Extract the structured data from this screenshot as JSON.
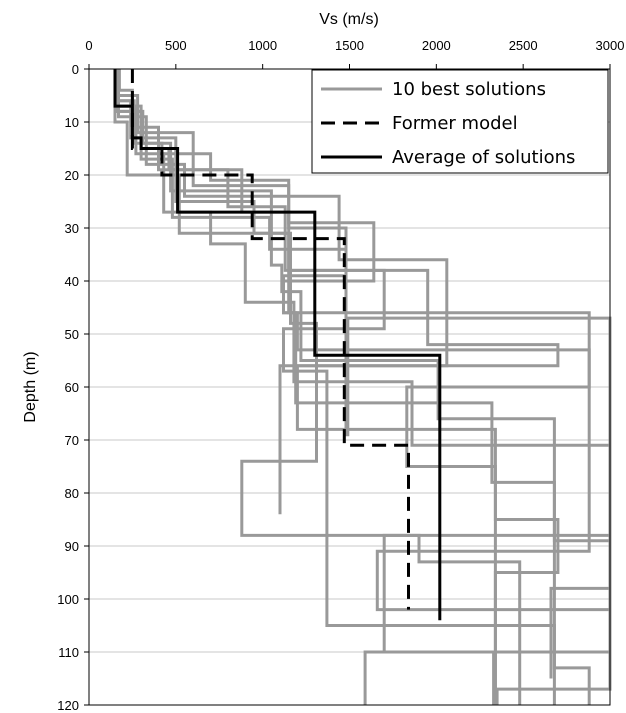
{
  "chart_data": {
    "type": "line",
    "xlabel": "Vs (m/s)",
    "ylabel": "Depth (m)",
    "xlim": [
      0,
      3000
    ],
    "ylim": [
      0,
      120
    ],
    "y_inverted": true,
    "x_axis_position": "top",
    "x_ticks": [
      "0",
      "500",
      "1000",
      "1500",
      "2000",
      "2500",
      "3000"
    ],
    "y_ticks": [
      "0",
      "10",
      "20",
      "30",
      "40",
      "50",
      "60",
      "70",
      "80",
      "90",
      "100",
      "110",
      "120"
    ],
    "grid": "horizontal",
    "legend_position": "top-right",
    "colors": {
      "solutions": "#999999",
      "former": "#000000",
      "average": "#000000",
      "grid": "#c8c8c8"
    },
    "legend": [
      {
        "label": "10 best solutions",
        "style": "solid",
        "color": "#999999"
      },
      {
        "label": "Former model",
        "style": "dashed",
        "color": "#000000"
      },
      {
        "label": "Average of solutions",
        "style": "solid",
        "color": "#000000"
      }
    ],
    "series": [
      {
        "group": "solutions",
        "x": [
          155,
          155,
          260,
          260,
          420,
          420,
          700,
          700,
          1150,
          1150,
          1480,
          1480,
          1120,
          1120,
          1200,
          1200,
          2880,
          2880,
          1660,
          1660,
          3000,
          3000,
          2350,
          2350
        ],
        "y": [
          0,
          6,
          6,
          14,
          14,
          16,
          16,
          21,
          21,
          30,
          30,
          39,
          39,
          46,
          46,
          53,
          53,
          91,
          91,
          102,
          102,
          117,
          117,
          120
        ]
      },
      {
        "group": "solutions",
        "x": [
          160,
          160,
          300,
          300,
          460,
          460,
          800,
          800,
          1130,
          1130,
          1950,
          1950,
          2700,
          2700,
          1200,
          1200,
          2340,
          2340,
          2700,
          2700,
          2340,
          2340
        ],
        "y": [
          0,
          7,
          7,
          15,
          15,
          19,
          19,
          26,
          26,
          38,
          38,
          52,
          52,
          56,
          56,
          68,
          68,
          85,
          85,
          95,
          95,
          120
        ]
      },
      {
        "group": "solutions",
        "x": [
          165,
          165,
          280,
          280,
          600,
          600,
          1150,
          1150,
          1640,
          1640,
          1120,
          1120,
          2880,
          2880,
          1830,
          1830,
          2340,
          2340
        ],
        "y": [
          0,
          5,
          5,
          12,
          12,
          22,
          22,
          29,
          29,
          40,
          40,
          46,
          46,
          60,
          60,
          75,
          75,
          120
        ]
      },
      {
        "group": "solutions",
        "x": [
          150,
          150,
          300,
          300,
          480,
          480,
          1040,
          1040,
          1480,
          1480,
          1490,
          1490,
          3000,
          3000,
          1700,
          1700,
          2330,
          2330
        ],
        "y": [
          0,
          8,
          8,
          17,
          17,
          28,
          28,
          34,
          34,
          69,
          69,
          47,
          47,
          88,
          88,
          110,
          110,
          120
        ]
      },
      {
        "group": "solutions",
        "x": [
          170,
          170,
          330,
          330,
          550,
          550,
          1440,
          1440,
          2060,
          2060,
          1100,
          1100
        ],
        "y": [
          0,
          9,
          9,
          18,
          18,
          24,
          24,
          36,
          36,
          56,
          56,
          84
        ]
      },
      {
        "group": "solutions",
        "x": [
          175,
          175,
          250,
          250,
          400,
          400,
          880,
          880,
          1150,
          1150,
          1190,
          1190,
          2320,
          2320,
          2680,
          2680,
          3000,
          3000,
          1590,
          1590
        ],
        "y": [
          0,
          4,
          4,
          11,
          11,
          19,
          19,
          27,
          27,
          46,
          46,
          63,
          63,
          78,
          78,
          89,
          89,
          110,
          110,
          120
        ]
      },
      {
        "group": "solutions",
        "x": [
          160,
          160,
          240,
          240,
          500,
          500,
          950,
          950,
          1160,
          1160,
          1310,
          1310,
          880,
          880,
          1900,
          1900,
          2480,
          2480
        ],
        "y": [
          0,
          6,
          6,
          13,
          13,
          25,
          25,
          31,
          31,
          48,
          48,
          74,
          74,
          88,
          88,
          93,
          93,
          120
        ]
      },
      {
        "group": "solutions",
        "x": [
          150,
          150,
          220,
          220,
          520,
          520,
          1150,
          1150,
          1700,
          1700,
          1120,
          1120,
          1370,
          1370,
          2680,
          2680,
          2880,
          2880
        ],
        "y": [
          0,
          10,
          10,
          20,
          20,
          31,
          31,
          38,
          38,
          49,
          49,
          57,
          57,
          105,
          105,
          113,
          113,
          120
        ]
      },
      {
        "group": "solutions",
        "x": [
          165,
          165,
          270,
          270,
          430,
          430,
          700,
          700,
          900,
          900,
          1180,
          1180,
          1860,
          1860,
          3000,
          3000,
          2660,
          2660
        ],
        "y": [
          0,
          7,
          7,
          16,
          16,
          27,
          27,
          33,
          33,
          44,
          44,
          59,
          59,
          71,
          71,
          98,
          98,
          115
        ]
      },
      {
        "group": "solutions",
        "x": [
          155,
          155,
          310,
          310,
          470,
          470,
          1050,
          1050,
          1110,
          1110,
          1220,
          1220,
          2010,
          2010,
          2680,
          2680
        ],
        "y": [
          0,
          8,
          8,
          14,
          14,
          23,
          23,
          37,
          37,
          42,
          42,
          55,
          55,
          66,
          66,
          120
        ]
      },
      {
        "group": "former",
        "name": "Former model",
        "x": [
          250,
          250,
          420,
          420,
          940,
          940,
          1470,
          1470,
          1490,
          1490,
          1840,
          1840
        ],
        "y": [
          0,
          15,
          15,
          20,
          20,
          32,
          32,
          71,
          71,
          71,
          71,
          102
        ]
      },
      {
        "group": "average",
        "name": "Average of solutions",
        "x": [
          150,
          150,
          250,
          250,
          300,
          300,
          510,
          510,
          1300,
          1300,
          2020,
          2020
        ],
        "y": [
          0,
          7,
          7,
          13,
          13,
          15,
          15,
          27,
          27,
          54,
          54,
          104
        ]
      }
    ]
  }
}
